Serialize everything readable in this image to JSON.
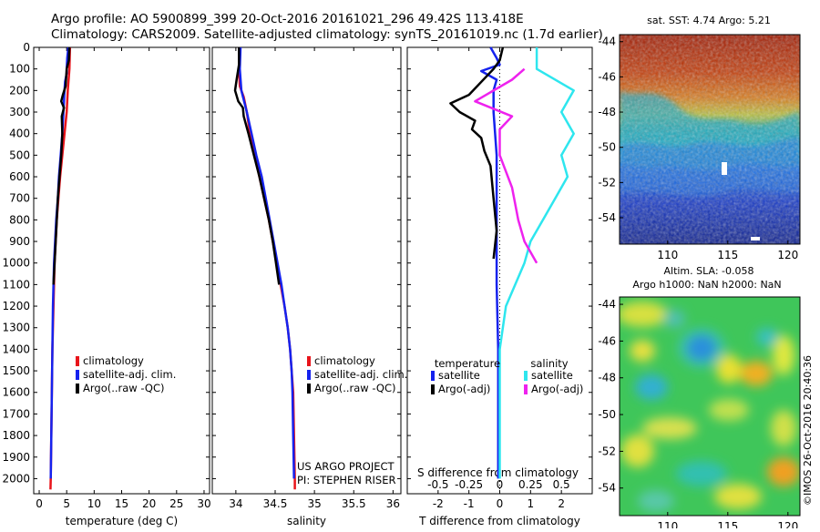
{
  "title": {
    "line1": "Argo profile: AO 5900899_399 20-Oct-2016 20161021_296 49.42S 113.418E",
    "line2": "Climatology: CARS2009. Satellite-adjusted climatology: synTS_20161019.nc (1.7d earlier)"
  },
  "credits": {
    "project": "US ARGO PROJECT",
    "pi": "PI: STEPHEN RISER",
    "watermark": "©IMOS 26-Oct-2016 20:40:36"
  },
  "colors": {
    "climatology": "#e8141b",
    "satellite": "#1522ee",
    "argo": "#000000",
    "sat_salinity": "#2ee6ee",
    "argo_salinity": "#ee22ee"
  },
  "chart_data": [
    {
      "type": "line",
      "panel": "temperature",
      "xlabel": "temperature (deg C)",
      "ylabel": "",
      "xlim": [
        -1,
        31
      ],
      "ylim": [
        2070,
        0
      ],
      "xticks": [
        0,
        5,
        10,
        15,
        20,
        25,
        30
      ],
      "yticks": [
        0,
        100,
        200,
        300,
        400,
        500,
        600,
        700,
        800,
        900,
        1000,
        1100,
        1200,
        1300,
        1400,
        1500,
        1600,
        1700,
        1800,
        1900,
        2000
      ],
      "legend": {
        "placement": "lower-center",
        "entries": [
          "climatology",
          "satellite-adj. clim.",
          "Argo(..raw -QC)"
        ]
      },
      "series": [
        {
          "name": "climatology",
          "color": "#e8141b",
          "points": [
            [
              5.6,
              0
            ],
            [
              5.5,
              100
            ],
            [
              5.2,
              200
            ],
            [
              5.0,
              300
            ],
            [
              4.6,
              400
            ],
            [
              4.2,
              500
            ],
            [
              3.8,
              600
            ],
            [
              3.5,
              700
            ],
            [
              3.2,
              800
            ],
            [
              3.0,
              900
            ],
            [
              2.8,
              1000
            ],
            [
              2.6,
              1200
            ],
            [
              2.4,
              1400
            ],
            [
              2.3,
              1600
            ],
            [
              2.2,
              1800
            ],
            [
              2.1,
              2000
            ],
            [
              2.05,
              2050
            ]
          ]
        },
        {
          "name": "satellite-adj. clim.",
          "color": "#1522ee",
          "points": [
            [
              5.3,
              0
            ],
            [
              5.1,
              50
            ],
            [
              5.0,
              100
            ],
            [
              5.0,
              120
            ],
            [
              4.7,
              160
            ],
            [
              4.6,
              200
            ],
            [
              4.4,
              300
            ],
            [
              4.2,
              400
            ],
            [
              3.9,
              500
            ],
            [
              3.6,
              600
            ],
            [
              3.4,
              700
            ],
            [
              3.1,
              800
            ],
            [
              2.9,
              900
            ],
            [
              2.7,
              1000
            ],
            [
              2.5,
              1200
            ],
            [
              2.4,
              1400
            ],
            [
              2.3,
              1600
            ],
            [
              2.2,
              1800
            ],
            [
              2.1,
              2000
            ]
          ]
        },
        {
          "name": "Argo(..raw -QC)",
          "color": "#000000",
          "points": [
            [
              5.5,
              0
            ],
            [
              5.4,
              60
            ],
            [
              5.0,
              100
            ],
            [
              4.8,
              180
            ],
            [
              4.3,
              220
            ],
            [
              4.0,
              250
            ],
            [
              4.5,
              280
            ],
            [
              4.1,
              320
            ],
            [
              4.2,
              400
            ],
            [
              4.0,
              500
            ],
            [
              3.7,
              600
            ],
            [
              3.4,
              700
            ],
            [
              3.2,
              800
            ],
            [
              3.0,
              900
            ],
            [
              2.8,
              1000
            ],
            [
              2.6,
              1100
            ]
          ]
        }
      ]
    },
    {
      "type": "line",
      "panel": "salinity",
      "xlabel": "salinity",
      "ylabel": "",
      "xlim": [
        33.7,
        36.1
      ],
      "ylim": [
        2070,
        0
      ],
      "xticks": [
        34,
        34.5,
        35,
        35.5,
        36
      ],
      "xticklabels": [
        "34",
        "34.5",
        "35",
        "35.5",
        "36"
      ],
      "legend": {
        "placement": "lower-center",
        "entries": [
          "climatology",
          "satellite-adj. clim.",
          "Argo(..raw -QC)"
        ]
      },
      "series": [
        {
          "name": "climatology",
          "color": "#e8141b",
          "points": [
            [
              34.04,
              0
            ],
            [
              34.04,
              100
            ],
            [
              34.05,
              180
            ],
            [
              34.1,
              230
            ],
            [
              34.14,
              300
            ],
            [
              34.18,
              400
            ],
            [
              34.24,
              500
            ],
            [
              34.3,
              600
            ],
            [
              34.36,
              700
            ],
            [
              34.42,
              800
            ],
            [
              34.47,
              900
            ],
            [
              34.52,
              1000
            ],
            [
              34.57,
              1100
            ],
            [
              34.62,
              1200
            ],
            [
              34.66,
              1300
            ],
            [
              34.69,
              1400
            ],
            [
              34.71,
              1500
            ],
            [
              34.73,
              1600
            ],
            [
              34.74,
              1800
            ],
            [
              34.75,
              2000
            ],
            [
              34.75,
              2050
            ]
          ]
        },
        {
          "name": "satellite-adj. clim.",
          "color": "#1522ee",
          "points": [
            [
              34.06,
              0
            ],
            [
              34.05,
              100
            ],
            [
              34.07,
              200
            ],
            [
              34.14,
              300
            ],
            [
              34.2,
              400
            ],
            [
              34.26,
              500
            ],
            [
              34.33,
              600
            ],
            [
              34.38,
              700
            ],
            [
              34.43,
              800
            ],
            [
              34.48,
              900
            ],
            [
              34.53,
              1000
            ],
            [
              34.58,
              1100
            ],
            [
              34.62,
              1200
            ],
            [
              34.66,
              1300
            ],
            [
              34.69,
              1400
            ],
            [
              34.71,
              1500
            ],
            [
              34.72,
              1600
            ],
            [
              34.73,
              1800
            ],
            [
              34.74,
              2000
            ]
          ]
        },
        {
          "name": "Argo(..raw -QC)",
          "color": "#000000",
          "points": [
            [
              34.04,
              0
            ],
            [
              34.04,
              80
            ],
            [
              34.01,
              150
            ],
            [
              33.99,
              200
            ],
            [
              34.03,
              250
            ],
            [
              34.09,
              280
            ],
            [
              34.1,
              320
            ],
            [
              34.16,
              400
            ],
            [
              34.23,
              500
            ],
            [
              34.3,
              600
            ],
            [
              34.36,
              700
            ],
            [
              34.42,
              800
            ],
            [
              34.47,
              900
            ],
            [
              34.51,
              1000
            ],
            [
              34.55,
              1100
            ]
          ]
        }
      ]
    },
    {
      "type": "line",
      "panel": "difference",
      "xlabel": "T difference from climatology",
      "x2label": "S difference from climatology",
      "xlim": [
        -3,
        3
      ],
      "ylim": [
        2070,
        0
      ],
      "xticks": [
        -2,
        -1,
        0,
        1,
        2
      ],
      "x2ticks": [
        -0.5,
        -0.25,
        0,
        0.25,
        0.5
      ],
      "x2ticklabels": [
        "-0.5",
        "-0.25",
        "0",
        "0.25",
        "0.5"
      ],
      "legend": {
        "placement": "lower-center",
        "groups": [
          "temperature",
          "salinity"
        ],
        "entries": [
          "satellite",
          "Argo(-adj)",
          "satellite",
          "Argo(-adj)"
        ]
      },
      "series": [
        {
          "name": "satellite",
          "group": "temperature",
          "color": "#1522ee",
          "points": [
            [
              -0.3,
              0
            ],
            [
              -0.1,
              50
            ],
            [
              0,
              80
            ],
            [
              -0.6,
              110
            ],
            [
              -0.1,
              150
            ],
            [
              -0.2,
              200
            ],
            [
              -0.2,
              300
            ],
            [
              -0.15,
              400
            ],
            [
              -0.1,
              500
            ],
            [
              -0.1,
              700
            ],
            [
              -0.1,
              900
            ],
            [
              -0.1,
              1100
            ],
            [
              -0.05,
              1400
            ],
            [
              -0.05,
              1700
            ],
            [
              -0.05,
              2000
            ]
          ]
        },
        {
          "name": "Argo(-adj)",
          "group": "temperature",
          "color": "#000000",
          "points": [
            [
              0.1,
              0
            ],
            [
              0.0,
              60
            ],
            [
              -0.2,
              100
            ],
            [
              -1.0,
              220
            ],
            [
              -1.6,
              260
            ],
            [
              -1.3,
              300
            ],
            [
              -0.8,
              340
            ],
            [
              -0.9,
              380
            ],
            [
              -0.6,
              420
            ],
            [
              -0.5,
              480
            ],
            [
              -0.3,
              550
            ],
            [
              -0.2,
              700
            ],
            [
              -0.1,
              850
            ],
            [
              -0.2,
              980
            ]
          ]
        },
        {
          "name": "satellite",
          "group": "salinity",
          "color": "#2ee6ee",
          "points": [
            [
              0.3,
              0
            ],
            [
              0.3,
              100
            ],
            [
              0.6,
              200
            ],
            [
              0.5,
              300
            ],
            [
              0.6,
              400
            ],
            [
              0.5,
              500
            ],
            [
              0.55,
              600
            ],
            [
              0.45,
              700
            ],
            [
              0.35,
              800
            ],
            [
              0.25,
              900
            ],
            [
              0.2,
              1000
            ],
            [
              0.05,
              1200
            ],
            [
              0.0,
              1400
            ],
            [
              0.0,
              2000
            ]
          ]
        },
        {
          "name": "Argo(-adj)",
          "group": "salinity",
          "color": "#ee22ee",
          "points": [
            [
              0.2,
              100
            ],
            [
              0.1,
              150
            ],
            [
              -0.2,
              250
            ],
            [
              0.1,
              320
            ],
            [
              0.0,
              380
            ],
            [
              0.0,
              500
            ],
            [
              0.1,
              650
            ],
            [
              0.15,
              800
            ],
            [
              0.2,
              900
            ],
            [
              0.3,
              1000
            ]
          ]
        }
      ]
    },
    {
      "type": "heatmap",
      "panel": "sst-map",
      "title": "sat. SST: 4.74 Argo: 5.21",
      "xlim": [
        106,
        121
      ],
      "ylim": [
        -55.5,
        -43.6
      ],
      "xticks": [
        110,
        115,
        120
      ],
      "yticks": [
        -44,
        -46,
        -48,
        -50,
        -52,
        -54
      ],
      "colormap": "jet"
    },
    {
      "type": "heatmap",
      "panel": "sla-map",
      "title": "Altim. SLA: -0.058",
      "subtitle": "Argo h1000: NaN h2000: NaN",
      "xlim": [
        106,
        121
      ],
      "ylim": [
        -55.5,
        -43.6
      ],
      "xticks": [
        110,
        115,
        120
      ],
      "yticks": [
        -44,
        -46,
        -48,
        -50,
        -52,
        -54
      ],
      "colormap": "jet"
    }
  ]
}
